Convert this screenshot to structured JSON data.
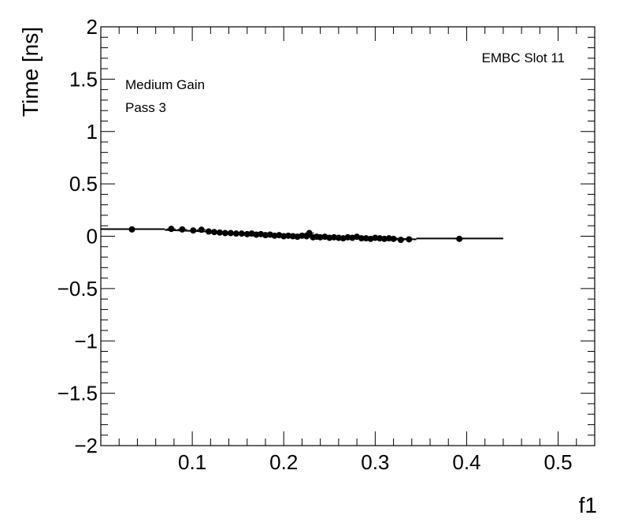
{
  "chart_data": {
    "type": "scatter",
    "xlabel": "f1",
    "ylabel": "Time [ns]",
    "xlim": [
      0.0,
      0.54
    ],
    "ylim": [
      -2,
      2
    ],
    "x_ticks": [
      0.1,
      0.2,
      0.3,
      0.4,
      0.5
    ],
    "x_tick_labels": [
      "0.1",
      "0.2",
      "0.3",
      "0.4",
      "0.5"
    ],
    "y_ticks": [
      -2,
      -1.5,
      -1,
      -0.5,
      0,
      0.5,
      1,
      1.5,
      2
    ],
    "y_tick_labels": [
      "−2",
      "−1.5",
      "−1",
      "−0.5",
      "0",
      "0.5",
      "1",
      "1.5",
      "2"
    ],
    "annotations": {
      "top_left": [
        "Medium Gain",
        "Pass 3"
      ],
      "top_right": "EMBC Slot 11"
    },
    "grid": false,
    "series": [
      {
        "points": [
          [
            0.034,
            0.065
          ],
          [
            0.077,
            0.07
          ],
          [
            0.089,
            0.065
          ],
          [
            0.101,
            0.055
          ],
          [
            0.11,
            0.062
          ],
          [
            0.118,
            0.045
          ],
          [
            0.124,
            0.04
          ],
          [
            0.13,
            0.035
          ],
          [
            0.136,
            0.03
          ],
          [
            0.142,
            0.03
          ],
          [
            0.148,
            0.025
          ],
          [
            0.154,
            0.025
          ],
          [
            0.16,
            0.02
          ],
          [
            0.165,
            0.025
          ],
          [
            0.17,
            0.015
          ],
          [
            0.175,
            0.02
          ],
          [
            0.18,
            0.01
          ],
          [
            0.185,
            0.015
          ],
          [
            0.19,
            0.005
          ],
          [
            0.195,
            0.01
          ],
          [
            0.2,
            0.0
          ],
          [
            0.205,
            0.005
          ],
          [
            0.21,
            0.0
          ],
          [
            0.215,
            -0.005
          ],
          [
            0.22,
            0.005
          ],
          [
            0.225,
            0.0
          ],
          [
            0.228,
            0.03
          ],
          [
            0.232,
            -0.01
          ],
          [
            0.236,
            -0.005
          ],
          [
            0.24,
            -0.01
          ],
          [
            0.245,
            -0.005
          ],
          [
            0.25,
            -0.015
          ],
          [
            0.255,
            -0.01
          ],
          [
            0.26,
            -0.015
          ],
          [
            0.265,
            -0.02
          ],
          [
            0.27,
            -0.01
          ],
          [
            0.275,
            -0.015
          ],
          [
            0.28,
            -0.005
          ],
          [
            0.285,
            -0.02
          ],
          [
            0.29,
            -0.02
          ],
          [
            0.295,
            -0.025
          ],
          [
            0.3,
            -0.015
          ],
          [
            0.305,
            -0.02
          ],
          [
            0.31,
            -0.025
          ],
          [
            0.315,
            -0.02
          ],
          [
            0.32,
            -0.025
          ],
          [
            0.328,
            -0.035
          ],
          [
            0.337,
            -0.03
          ],
          [
            0.392,
            -0.025
          ]
        ],
        "fit_segments": [
          {
            "x": [
              0.0,
              0.07
            ],
            "y": [
              0.068,
              0.068
            ]
          },
          {
            "x": [
              0.07,
              0.345
            ],
            "y": [
              0.06,
              -0.03
            ]
          },
          {
            "x": [
              0.345,
              0.44
            ],
            "y": [
              -0.022,
              -0.022
            ]
          }
        ]
      }
    ]
  }
}
